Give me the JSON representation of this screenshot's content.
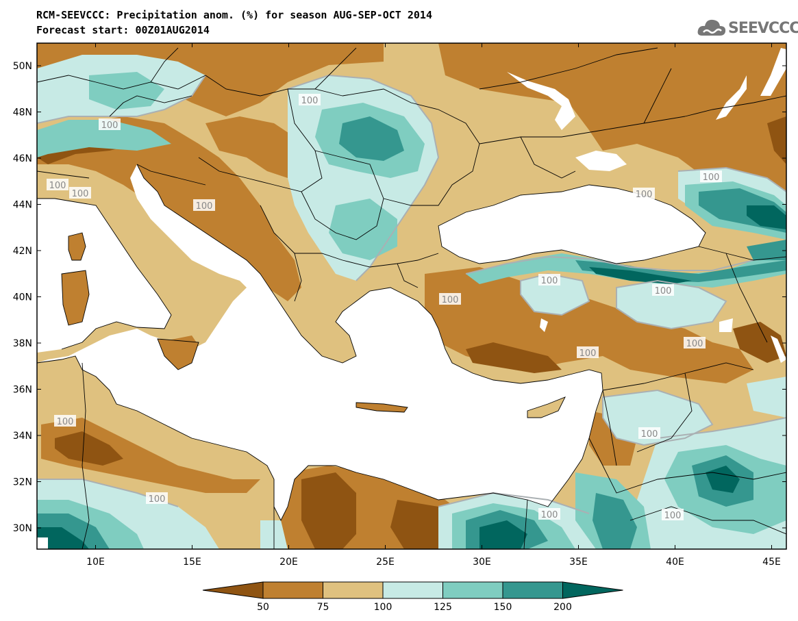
{
  "title_line1": "RCM-SEEVCCC: Precipitation anom. (%) for season AUG-SEP-OCT 2014",
  "title_line2": "Forecast start: 00Z01AUG2014",
  "logo_text": "SEEVCCC",
  "lat_labels": [
    "50N",
    "48N",
    "46N",
    "44N",
    "42N",
    "40N",
    "38N",
    "36N",
    "34N",
    "32N",
    "30N"
  ],
  "lon_labels": [
    "10E",
    "15E",
    "20E",
    "25E",
    "30E",
    "35E",
    "40E",
    "45E"
  ],
  "contour_label": "100",
  "colorbar": {
    "labels": [
      "50",
      "75",
      "100",
      "125",
      "150",
      "200"
    ],
    "colors": [
      "#8f5412",
      "#bf8030",
      "#dfc17f",
      "#c7eae5",
      "#7fcdc0",
      "#35978f",
      "#01665e"
    ]
  }
}
